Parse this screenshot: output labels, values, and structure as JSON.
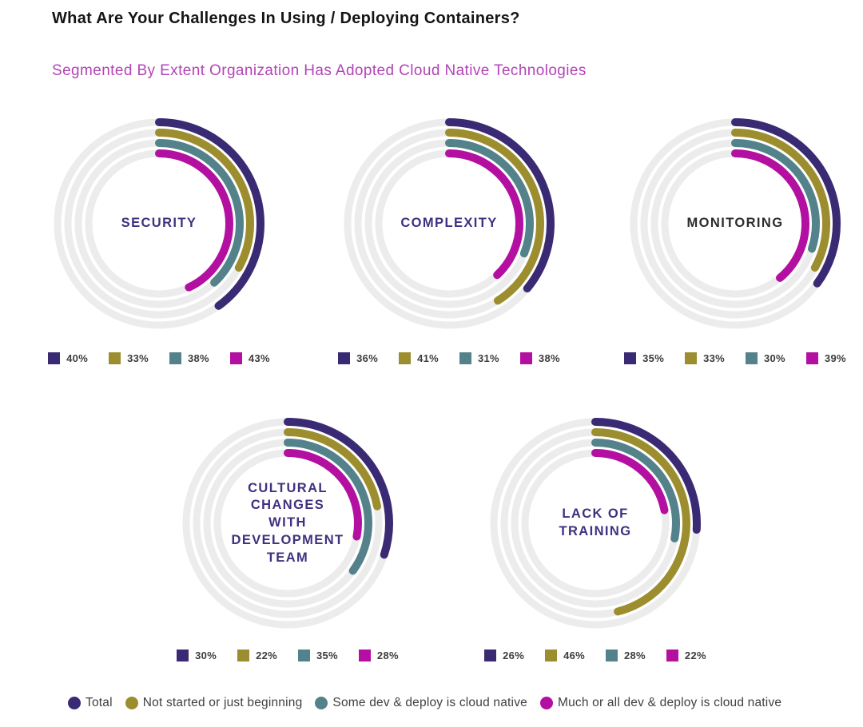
{
  "page": {
    "title": "What Are Your Challenges In Using / Deploying Containers?",
    "subtitle": "Segmented By Extent Organization Has Adopted Cloud Native Technologies"
  },
  "colors": {
    "title": "#151515",
    "subtitle": "#b344b6",
    "track": "#ececec",
    "center_label_purple": "#41307f",
    "center_label_dark": "#2d2d2d",
    "percent_text": "#3d3d3d",
    "legend_text": "#404040"
  },
  "chart_data": {
    "type": "radial-bar",
    "unit": "%",
    "value_range": [
      0,
      100
    ],
    "start_angle": "top",
    "direction": "clockwise",
    "legend_position": "bottom",
    "series": [
      {
        "name": "Total",
        "color": "#3a2a73"
      },
      {
        "name": "Not started or just beginning",
        "color": "#9c8d2e"
      },
      {
        "name": "Some dev & deploy is cloud native",
        "color": "#54828a"
      },
      {
        "name": "Much or all dev & deploy is cloud native",
        "color": "#b30fa0"
      }
    ],
    "charts": [
      {
        "label": "SECURITY",
        "label_lines": [
          "SECURITY"
        ],
        "label_color": "#41307f",
        "values": [
          40,
          33,
          38,
          43
        ]
      },
      {
        "label": "COMPLEXITY",
        "label_lines": [
          "COMPLEXITY"
        ],
        "label_color": "#41307f",
        "values": [
          36,
          41,
          31,
          38
        ]
      },
      {
        "label": "MONITORING",
        "label_lines": [
          "MONITORING"
        ],
        "label_color": "#2d2d2d",
        "values": [
          35,
          33,
          30,
          39
        ]
      },
      {
        "label": "CULTURAL CHANGES WITH DEVELOPMENT TEAM",
        "label_lines": [
          "CULTURAL",
          "CHANGES",
          "WITH",
          "DEVELOPMENT",
          "TEAM"
        ],
        "label_color": "#41307f",
        "values": [
          30,
          22,
          35,
          28
        ]
      },
      {
        "label": "LACK OF TRAINING",
        "label_lines": [
          "LACK OF",
          "TRAINING"
        ],
        "label_color": "#41307f",
        "values": [
          26,
          46,
          28,
          22
        ]
      }
    ]
  }
}
